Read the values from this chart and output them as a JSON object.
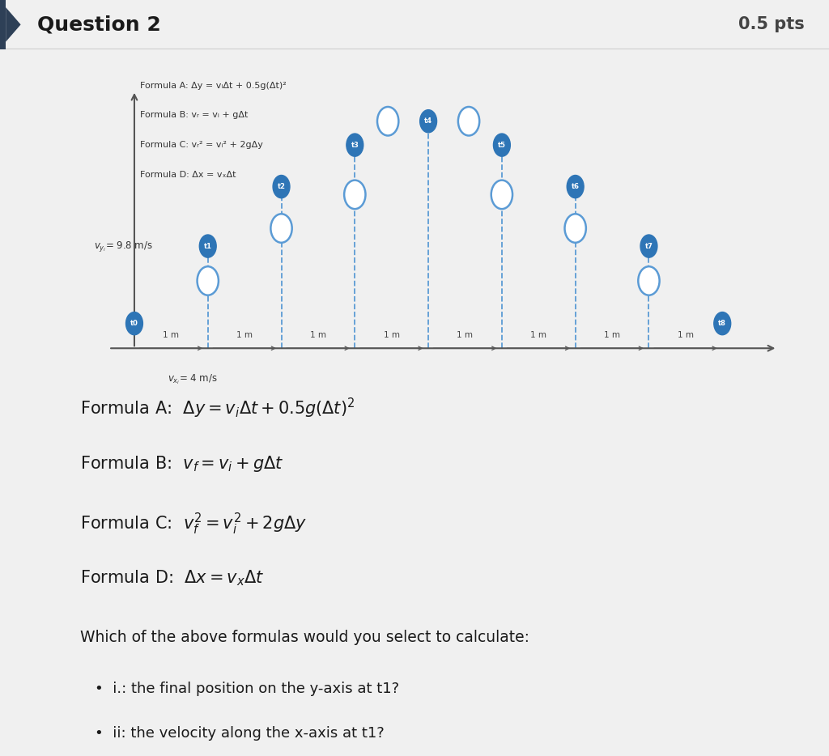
{
  "title_text": "Question 2",
  "pts_text": "0.5 pts",
  "bg_color": "#f0f0f0",
  "panel_color": "#ffffff",
  "border_color": "#cccccc",
  "diagram_color": "#5b9bd5",
  "diagram_color_dark": "#2e75b6",
  "formula_small": [
    "Formula A: Δy = vᵢΔt + 0.5g(Δt)²",
    "Formula B: vᵣ = vᵢ + gΔt",
    "Formula C: vᵣ² = vᵢ² + 2gΔy",
    "Formula D: Δx = vₓΔt"
  ],
  "vyi_label": "$v_{y_i}$= 9.8 m/s",
  "vxi_label": "$v_{x_i}$= 4 m/s",
  "t_labels": [
    "t0",
    "t1",
    "t2",
    "t3",
    "t4",
    "t5",
    "t6",
    "t7",
    "t8"
  ],
  "x_positions": [
    0,
    1,
    2,
    3,
    4,
    5,
    6,
    7,
    8
  ],
  "y_positions": [
    0.0,
    0.78,
    1.38,
    1.8,
    2.04,
    1.8,
    1.38,
    0.78,
    0.0
  ],
  "open_circle_offsets": [
    0,
    -0.35,
    -0.42,
    -0.5,
    0,
    -0.5,
    -0.42,
    -0.35,
    0
  ],
  "formula_A": "Formula A:  $\\Delta y = v_i\\Delta t + 0.5g(\\Delta t)^2$",
  "formula_B": "Formula B:  $v_f = v_i + g\\Delta t$",
  "formula_C": "Formula C:  $v_f^2 = v_i^2 + 2g\\Delta y$",
  "formula_D": "Formula D:  $\\Delta x = v_x\\Delta t$",
  "question_text": "Which of the above formulas would you select to calculate:",
  "bullet1": "i.: the final position on the y-axis at t1?",
  "bullet2": "ii: the velocity along the x-axis at t1?"
}
